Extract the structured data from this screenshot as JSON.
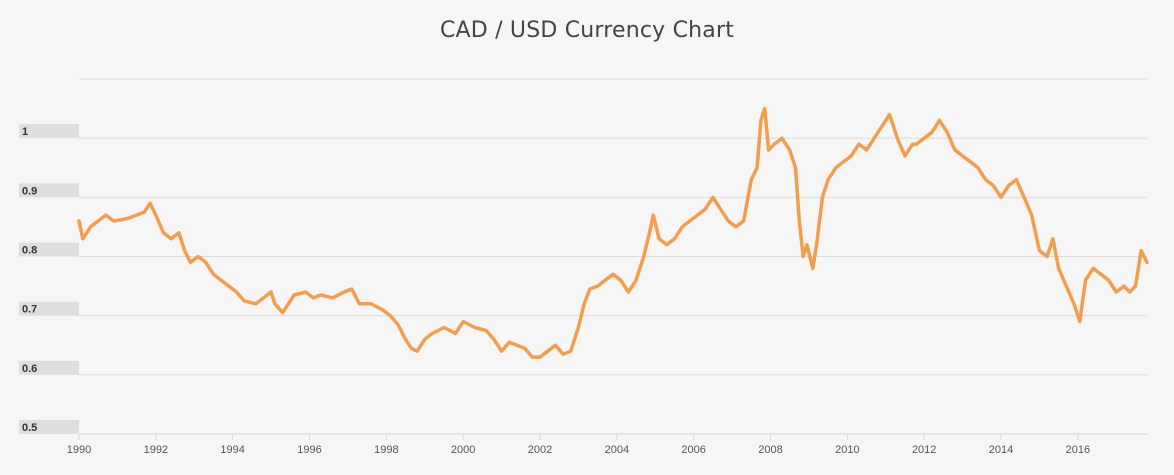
{
  "chart_data": {
    "type": "line",
    "title": "CAD / USD Currency Chart",
    "xlabel": "",
    "ylabel": "",
    "grid": true,
    "legend": "none",
    "xlim": [
      1990,
      2017.8
    ],
    "ylim": [
      0.5,
      1.1
    ],
    "x_ticks": [
      "1990",
      "1992",
      "1994",
      "1996",
      "1998",
      "2000",
      "2002",
      "2004",
      "2006",
      "2008",
      "2010",
      "2012",
      "2014",
      "2016"
    ],
    "y_ticks": [
      "0.5",
      "0.6",
      "0.7",
      "0.8",
      "0.9",
      "1"
    ],
    "colors": {
      "line": "#f29e4c",
      "background": "#f6f6f6",
      "grid": "#dcdcdc",
      "tick_label_bg": "#dedede"
    },
    "series": [
      {
        "x": [
          1990.0,
          1990.1,
          1990.3,
          1990.5,
          1990.7,
          1990.9,
          1991.1,
          1991.3,
          1991.5,
          1991.7,
          1991.85,
          1992.0,
          1992.2,
          1992.4,
          1992.6,
          1992.75,
          1992.9,
          1993.1,
          1993.3,
          1993.5,
          1993.7,
          1993.9,
          1994.1,
          1994.3,
          1994.6,
          1994.8,
          1995.0,
          1995.1,
          1995.3,
          1995.6,
          1995.9,
          1996.1,
          1996.3,
          1996.6,
          1996.9,
          1997.1,
          1997.3,
          1997.6,
          1997.9,
          1998.1,
          1998.3,
          1998.5,
          1998.65,
          1998.8,
          1999.0,
          1999.2,
          1999.5,
          1999.8,
          2000.0,
          2000.3,
          2000.6,
          2000.8,
          2001.0,
          2001.2,
          2001.4,
          2001.6,
          2001.8,
          2002.0,
          2002.2,
          2002.4,
          2002.6,
          2002.8,
          2003.0,
          2003.15,
          2003.3,
          2003.5,
          2003.7,
          2003.9,
          2004.1,
          2004.3,
          2004.5,
          2004.7,
          2004.85,
          2004.95,
          2005.1,
          2005.3,
          2005.5,
          2005.7,
          2005.9,
          2006.1,
          2006.3,
          2006.5,
          2006.7,
          2006.9,
          2007.1,
          2007.3,
          2007.5,
          2007.65,
          2007.75,
          2007.85,
          2007.95,
          2008.1,
          2008.3,
          2008.5,
          2008.65,
          2008.75,
          2008.85,
          2008.95,
          2009.1,
          2009.2,
          2009.35,
          2009.5,
          2009.7,
          2009.9,
          2010.1,
          2010.3,
          2010.5,
          2010.7,
          2010.9,
          2011.1,
          2011.3,
          2011.5,
          2011.7,
          2011.8,
          2012.0,
          2012.2,
          2012.4,
          2012.6,
          2012.8,
          2013.0,
          2013.2,
          2013.4,
          2013.6,
          2013.8,
          2014.0,
          2014.2,
          2014.4,
          2014.6,
          2014.8,
          2015.0,
          2015.2,
          2015.35,
          2015.5,
          2015.7,
          2015.9,
          2016.05,
          2016.2,
          2016.4,
          2016.6,
          2016.8,
          2017.0,
          2017.2,
          2017.35,
          2017.5,
          2017.65,
          2017.8
        ],
        "values": [
          0.86,
          0.83,
          0.85,
          0.86,
          0.87,
          0.86,
          0.862,
          0.865,
          0.87,
          0.875,
          0.89,
          0.87,
          0.84,
          0.83,
          0.84,
          0.81,
          0.79,
          0.8,
          0.79,
          0.77,
          0.76,
          0.75,
          0.74,
          0.725,
          0.72,
          0.73,
          0.74,
          0.72,
          0.705,
          0.735,
          0.74,
          0.73,
          0.735,
          0.73,
          0.74,
          0.745,
          0.72,
          0.72,
          0.71,
          0.7,
          0.685,
          0.66,
          0.645,
          0.64,
          0.66,
          0.67,
          0.68,
          0.67,
          0.69,
          0.68,
          0.675,
          0.66,
          0.64,
          0.655,
          0.65,
          0.645,
          0.63,
          0.63,
          0.64,
          0.65,
          0.635,
          0.64,
          0.68,
          0.72,
          0.745,
          0.75,
          0.76,
          0.77,
          0.76,
          0.74,
          0.76,
          0.8,
          0.84,
          0.87,
          0.83,
          0.82,
          0.83,
          0.85,
          0.86,
          0.87,
          0.88,
          0.9,
          0.88,
          0.86,
          0.85,
          0.86,
          0.93,
          0.95,
          1.03,
          1.05,
          0.98,
          0.99,
          1.0,
          0.98,
          0.95,
          0.86,
          0.8,
          0.82,
          0.78,
          0.82,
          0.9,
          0.93,
          0.95,
          0.96,
          0.97,
          0.99,
          0.98,
          1.0,
          1.02,
          1.04,
          1.0,
          0.97,
          0.99,
          0.99,
          1.0,
          1.01,
          1.03,
          1.01,
          0.98,
          0.97,
          0.96,
          0.95,
          0.93,
          0.92,
          0.9,
          0.92,
          0.93,
          0.9,
          0.87,
          0.81,
          0.8,
          0.83,
          0.78,
          0.75,
          0.72,
          0.69,
          0.76,
          0.78,
          0.77,
          0.76,
          0.74,
          0.75,
          0.74,
          0.75,
          0.81,
          0.79
        ]
      }
    ]
  }
}
